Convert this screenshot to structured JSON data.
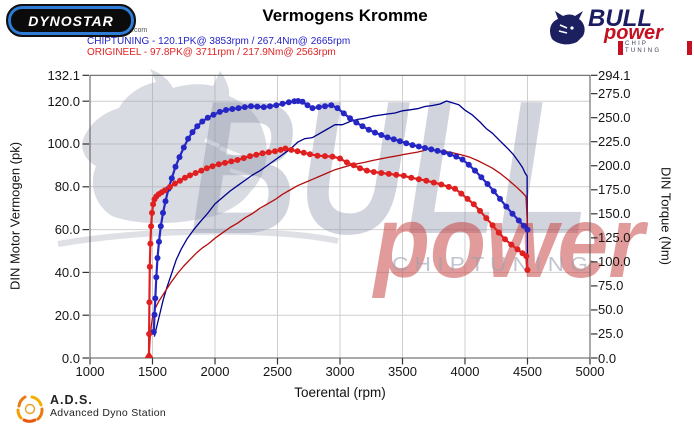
{
  "header": {
    "dynostar_text": "DYNOSTAR",
    "dynostar_domain": ".com",
    "title": "Vermogens Kromme",
    "legend": [
      {
        "label": "CHIPTUNING - 120.1PK@ 3853rpm / 267.4Nm@ 2665rpm",
        "color": "#2323c8"
      },
      {
        "label": "ORIGINEEL - 97.8PK@ 3711rpm / 217.9Nm@ 2563rpm",
        "color": "#e32222"
      }
    ],
    "bull_logo": {
      "word1": "BULL",
      "word2": "power",
      "word3": "CHIP TUNING"
    }
  },
  "watermark": {
    "word1": "BULL",
    "word2": "power",
    "word3": "C H I P  T U N I N G"
  },
  "footer": {
    "ads_abbr": "A.D.S.",
    "ads_name": "Advanced Dyno Station"
  },
  "chart_data": {
    "type": "line",
    "title": "Vermogens Kromme",
    "xlabel": "Toerental (rpm)",
    "ylabel_left": "DIN Motor Vermogen (pk)",
    "ylabel_right": "DIN Torque (Nm)",
    "x_range": [
      1000,
      5000
    ],
    "y_left_range": [
      0,
      132.1
    ],
    "y_right_range": [
      0,
      294.1
    ],
    "grid": true,
    "x_ticks": [
      "1000",
      "1500",
      "2000",
      "2500",
      "3000",
      "3500",
      "4000",
      "4500",
      "5000"
    ],
    "y_left_ticks": [
      "132.1",
      "120.0",
      "100.0",
      "80.0",
      "60.0",
      "40.0",
      "20.0",
      "0.0"
    ],
    "y_right_ticks": [
      "294.1",
      "275.0",
      "250.0",
      "225.0",
      "200.0",
      "175.0",
      "150.0",
      "125.0",
      "100.0",
      "75.0",
      "50.0",
      "25.0",
      "0.0"
    ],
    "colors": {
      "chiptuning_torque": "#2626c4",
      "chiptuning_power": "#00008f",
      "origineel_torque": "#e02020",
      "origineel_power": "#b50d0d",
      "grid": "#cfcfcf",
      "frame": "#555555"
    },
    "series": [
      {
        "name": "CHIPTUNING power (pk)",
        "axis": "left",
        "color": "#00008f",
        "width": 1.3,
        "markers": false,
        "points": [
          [
            1515,
            10
          ],
          [
            1535,
            15
          ],
          [
            1560,
            21
          ],
          [
            1585,
            27
          ],
          [
            1615,
            33
          ],
          [
            1650,
            39
          ],
          [
            1690,
            46
          ],
          [
            1730,
            51
          ],
          [
            1780,
            56
          ],
          [
            1830,
            60
          ],
          [
            1880,
            63.5
          ],
          [
            1940,
            67.5
          ],
          [
            2000,
            72
          ],
          [
            2060,
            75
          ],
          [
            2120,
            78
          ],
          [
            2180,
            80.5
          ],
          [
            2240,
            83
          ],
          [
            2300,
            85.5
          ],
          [
            2360,
            87.5
          ],
          [
            2420,
            90
          ],
          [
            2480,
            92.5
          ],
          [
            2540,
            95
          ],
          [
            2600,
            97.5
          ],
          [
            2665,
            101
          ],
          [
            2720,
            102.5
          ],
          [
            2780,
            103
          ],
          [
            2840,
            105
          ],
          [
            2900,
            107
          ],
          [
            2960,
            109
          ],
          [
            3020,
            109
          ],
          [
            3080,
            110.5
          ],
          [
            3140,
            111.5
          ],
          [
            3200,
            112
          ],
          [
            3260,
            113
          ],
          [
            3320,
            113.5
          ],
          [
            3380,
            114
          ],
          [
            3440,
            114.5
          ],
          [
            3500,
            115.5
          ],
          [
            3560,
            116
          ],
          [
            3620,
            116.5
          ],
          [
            3680,
            117.5
          ],
          [
            3740,
            118
          ],
          [
            3800,
            118.7
          ],
          [
            3853,
            120.1
          ],
          [
            3900,
            119.2
          ],
          [
            3950,
            118.3
          ],
          [
            4000,
            115.8
          ],
          [
            4060,
            113.5
          ],
          [
            4120,
            110.3
          ],
          [
            4170,
            107.2
          ],
          [
            4220,
            105
          ],
          [
            4270,
            102
          ],
          [
            4310,
            99.7
          ],
          [
            4350,
            97.4
          ],
          [
            4390,
            94.8
          ],
          [
            4430,
            91.6
          ],
          [
            4460,
            89
          ],
          [
            4480,
            86.5
          ],
          [
            4497,
            85
          ],
          [
            4500,
            40
          ]
        ]
      },
      {
        "name": "ORIGINEEL power (pk)",
        "axis": "left",
        "color": "#b50d0d",
        "width": 1.3,
        "markers": false,
        "points": [
          [
            1476,
            4
          ],
          [
            1481,
            9
          ],
          [
            1490,
            15
          ],
          [
            1500,
            19
          ],
          [
            1520,
            23
          ],
          [
            1550,
            26.5
          ],
          [
            1600,
            31
          ],
          [
            1650,
            35.5
          ],
          [
            1700,
            39.5
          ],
          [
            1750,
            43
          ],
          [
            1800,
            46
          ],
          [
            1850,
            49
          ],
          [
            1900,
            51.5
          ],
          [
            1950,
            53.5
          ],
          [
            2000,
            56
          ],
          [
            2060,
            58.5
          ],
          [
            2120,
            61
          ],
          [
            2180,
            63
          ],
          [
            2240,
            65.5
          ],
          [
            2300,
            67.5
          ],
          [
            2360,
            70
          ],
          [
            2420,
            72
          ],
          [
            2480,
            74
          ],
          [
            2540,
            76.5
          ],
          [
            2600,
            78.5
          ],
          [
            2660,
            80.5
          ],
          [
            2720,
            82
          ],
          [
            2780,
            83.5
          ],
          [
            2840,
            85
          ],
          [
            2900,
            86.5
          ],
          [
            2960,
            88
          ],
          [
            3020,
            89
          ],
          [
            3080,
            90
          ],
          [
            3140,
            90.8
          ],
          [
            3200,
            91.5
          ],
          [
            3260,
            92.3
          ],
          [
            3320,
            93
          ],
          [
            3380,
            93.7
          ],
          [
            3440,
            94.3
          ],
          [
            3500,
            95
          ],
          [
            3560,
            95.6
          ],
          [
            3620,
            96.2
          ],
          [
            3665,
            96.8
          ],
          [
            3711,
            97.8
          ],
          [
            3760,
            97.2
          ],
          [
            3820,
            96.6
          ],
          [
            3880,
            96.2
          ],
          [
            3930,
            95.5
          ],
          [
            3980,
            94.8
          ],
          [
            4040,
            93.8
          ],
          [
            4100,
            92.3
          ],
          [
            4160,
            90.5
          ],
          [
            4220,
            88.7
          ],
          [
            4280,
            86.3
          ],
          [
            4340,
            83.5
          ],
          [
            4400,
            80.5
          ],
          [
            4450,
            77.8
          ],
          [
            4488,
            75.5
          ],
          [
            4500,
            61.5
          ]
        ]
      },
      {
        "name": "CHIPTUNING torque (Nm)",
        "axis": "right",
        "color": "#2626c4",
        "width": 2.2,
        "markers": true,
        "points": [
          [
            1510,
            27
          ],
          [
            1516,
            45
          ],
          [
            1522,
            62
          ],
          [
            1530,
            84
          ],
          [
            1540,
            104
          ],
          [
            1552,
            121
          ],
          [
            1566,
            137
          ],
          [
            1584,
            151
          ],
          [
            1604,
            163
          ],
          [
            1628,
            176
          ],
          [
            1654,
            187
          ],
          [
            1684,
            199
          ],
          [
            1716,
            209
          ],
          [
            1750,
            219
          ],
          [
            1785,
            228
          ],
          [
            1820,
            235
          ],
          [
            1858,
            241
          ],
          [
            1898,
            246
          ],
          [
            1942,
            250
          ],
          [
            1988,
            253
          ],
          [
            2038,
            256
          ],
          [
            2088,
            258
          ],
          [
            2138,
            259
          ],
          [
            2188,
            260
          ],
          [
            2238,
            261
          ],
          [
            2288,
            262
          ],
          [
            2338,
            261.5
          ],
          [
            2390,
            261
          ],
          [
            2440,
            262
          ],
          [
            2490,
            263
          ],
          [
            2540,
            264.5
          ],
          [
            2590,
            266
          ],
          [
            2635,
            267
          ],
          [
            2665,
            267.4
          ],
          [
            2700,
            266.5
          ],
          [
            2740,
            263
          ],
          [
            2780,
            260
          ],
          [
            2830,
            261
          ],
          [
            2880,
            262
          ],
          [
            2930,
            263
          ],
          [
            2980,
            260
          ],
          [
            3030,
            254.5
          ],
          [
            3080,
            249.5
          ],
          [
            3130,
            245
          ],
          [
            3180,
            241
          ],
          [
            3230,
            237.5
          ],
          [
            3280,
            234.5
          ],
          [
            3330,
            232
          ],
          [
            3380,
            229.5
          ],
          [
            3430,
            227.5
          ],
          [
            3480,
            225.5
          ],
          [
            3530,
            223.5
          ],
          [
            3580,
            221.5
          ],
          [
            3630,
            220
          ],
          [
            3680,
            218.5
          ],
          [
            3730,
            217
          ],
          [
            3780,
            215.5
          ],
          [
            3830,
            214
          ],
          [
            3880,
            212
          ],
          [
            3930,
            209.5
          ],
          [
            3980,
            206.5
          ],
          [
            4030,
            201
          ],
          [
            4080,
            195
          ],
          [
            4130,
            188
          ],
          [
            4180,
            181
          ],
          [
            4230,
            173.5
          ],
          [
            4280,
            165.5
          ],
          [
            4330,
            157.5
          ],
          [
            4380,
            150
          ],
          [
            4430,
            143
          ],
          [
            4470,
            137.5
          ],
          [
            4500,
            133.5
          ]
        ]
      },
      {
        "name": "ORIGINEEL torque (Nm)",
        "axis": "right",
        "color": "#e02020",
        "width": 2.2,
        "markers": true,
        "start_marker": "triangle",
        "points": [
          [
            1472,
            0
          ],
          [
            1473,
            25
          ],
          [
            1475,
            58
          ],
          [
            1478,
            95
          ],
          [
            1483,
            119
          ],
          [
            1489,
            137
          ],
          [
            1496,
            151
          ],
          [
            1505,
            160
          ],
          [
            1516,
            165
          ],
          [
            1530,
            168
          ],
          [
            1550,
            170.5
          ],
          [
            1574,
            172.5
          ],
          [
            1600,
            174.5
          ],
          [
            1640,
            178
          ],
          [
            1680,
            181.5
          ],
          [
            1720,
            184.5
          ],
          [
            1760,
            187.5
          ],
          [
            1800,
            190
          ],
          [
            1845,
            192.5
          ],
          [
            1890,
            195
          ],
          [
            1935,
            197.5
          ],
          [
            1980,
            199.5
          ],
          [
            2030,
            201.5
          ],
          [
            2080,
            203
          ],
          [
            2130,
            204.5
          ],
          [
            2180,
            206
          ],
          [
            2230,
            208
          ],
          [
            2280,
            210
          ],
          [
            2330,
            211.5
          ],
          [
            2380,
            213
          ],
          [
            2430,
            214
          ],
          [
            2480,
            215
          ],
          [
            2525,
            216.5
          ],
          [
            2563,
            217.9
          ],
          [
            2610,
            216.5
          ],
          [
            2660,
            215
          ],
          [
            2710,
            213.5
          ],
          [
            2760,
            212
          ],
          [
            2820,
            210.5
          ],
          [
            2880,
            210
          ],
          [
            2940,
            209.5
          ],
          [
            3000,
            207.5
          ],
          [
            3055,
            203.5
          ],
          [
            3110,
            200.5
          ],
          [
            3160,
            197.5
          ],
          [
            3215,
            195
          ],
          [
            3270,
            193.5
          ],
          [
            3330,
            192.5
          ],
          [
            3390,
            191.5
          ],
          [
            3450,
            190.5
          ],
          [
            3510,
            189.5
          ],
          [
            3570,
            187.5
          ],
          [
            3630,
            186
          ],
          [
            3690,
            184.5
          ],
          [
            3750,
            182.5
          ],
          [
            3810,
            180.5
          ],
          [
            3870,
            178
          ],
          [
            3920,
            176
          ],
          [
            3970,
            171
          ],
          [
            4020,
            165.5
          ],
          [
            4070,
            160
          ],
          [
            4120,
            153
          ],
          [
            4170,
            145.5
          ],
          [
            4220,
            138
          ],
          [
            4270,
            130.5
          ],
          [
            4320,
            123.5
          ],
          [
            4370,
            118
          ],
          [
            4420,
            113
          ],
          [
            4460,
            109
          ],
          [
            4490,
            106
          ],
          [
            4500,
            91.5
          ]
        ]
      }
    ]
  }
}
